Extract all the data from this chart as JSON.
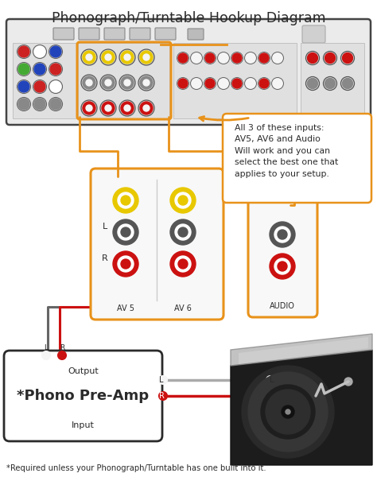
{
  "title": "Phonograph/Turntable Hookup Diagram",
  "footnote": "*Required unless your Phonograph/Turntable has one built into it.",
  "callout_text": "All 3 of these inputs:\nAV5, AV6 and Audio\nWill work and you can\nselect the best one that\napplies to your setup.",
  "preamp_label_top": "Output",
  "preamp_label_main": "*Phono Pre-Amp",
  "preamp_label_bottom": "Input",
  "av5_label": "AV 5",
  "av6_label": "AV 6",
  "audio_label": "AUDIO",
  "bg_color": "#ffffff",
  "orange_color": "#e8921a",
  "dark_color": "#2a2a2a",
  "red_color": "#cc1111",
  "gray_color": "#888888",
  "receiver_fill": "#ebebeb",
  "receiver_stroke": "#444444",
  "panel_fill": "#e0e0e0",
  "connector_white": "#f5f5f5",
  "yellow_color": "#e8c800",
  "figw": 4.74,
  "figh": 6.0,
  "dpi": 100
}
